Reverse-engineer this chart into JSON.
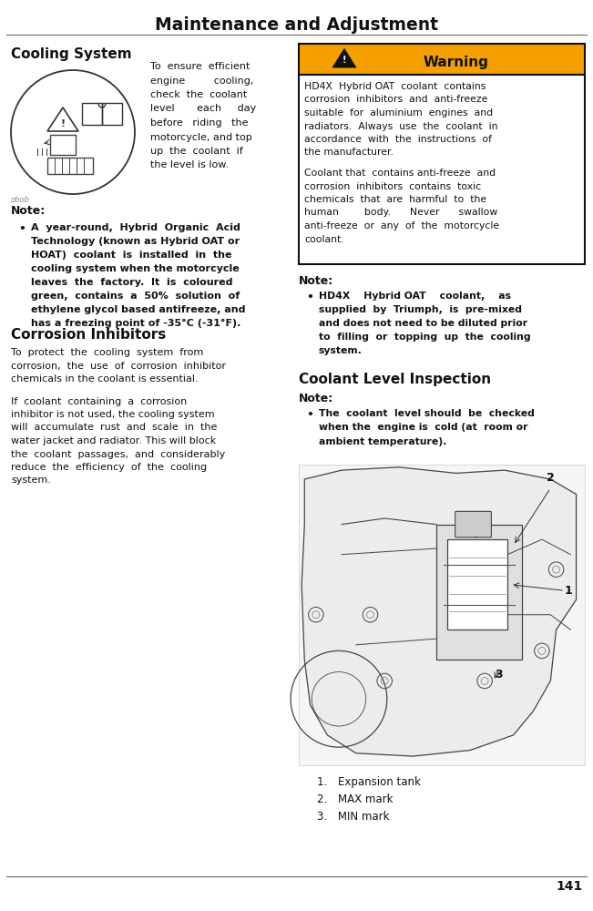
{
  "page_title": "Maintenance and Adjustment",
  "page_number": "141",
  "bg_color": "#ffffff",
  "title_color": "#000000",
  "warning_bg": "#f5a000",
  "warning_border": "#111111",
  "text_color": "#111111",
  "header_title": "Maintenance and Adjustment",
  "section1_title": "Cooling System",
  "obob_label": "obob",
  "intro_text_lines": [
    "To  ensure  efficient",
    "engine         cooling,",
    "check  the  coolant",
    "level       each     day",
    "before   riding   the",
    "motorcycle, and top",
    "up  the  coolant  if",
    "the level is low."
  ],
  "note1_label": "Note:",
  "note1_bullet_lines": [
    "A  year-round,  Hybrid  Organic  Acid",
    "Technology (known as Hybrid OAT or",
    "HOAT)  coolant  is  installed  in  the",
    "cooling system when the motorcycle",
    "leaves  the  factory.  It  is  coloured",
    "green,  contains  a  50%  solution  of",
    "ethylene glycol based antifreeze, and",
    "has a freezing point of -35°C (-31°F)."
  ],
  "section2_title": "Corrosion Inhibitors",
  "corrosion_para1_lines": [
    "To  protect  the  cooling  system  from",
    "corrosion,  the  use  of  corrosion  inhibitor",
    "chemicals in the coolant is essential."
  ],
  "corrosion_para2_lines": [
    "If  coolant  containing  a  corrosion",
    "inhibitor is not used, the cooling system",
    "will  accumulate  rust  and  scale  in  the",
    "water jacket and radiator. This will block",
    "the  coolant  passages,  and  considerably",
    "reduce  the  efficiency  of  the  cooling",
    "system."
  ],
  "warning_title": "Warning",
  "warning_text1_lines": [
    "HD4X  Hybrid OAT  coolant  contains",
    "corrosion  inhibitors  and  anti-freeze",
    "suitable  for  aluminium  engines  and",
    "radiators.  Always  use  the  coolant  in",
    "accordance  with  the  instructions  of",
    "the manufacturer."
  ],
  "warning_text2_lines": [
    "Coolant that  contains anti-freeze  and",
    "corrosion  inhibitors  contains  toxic",
    "chemicals  that  are  harmful  to  the",
    "human        body.      Never      swallow",
    "anti-freeze  or  any  of  the  motorcycle",
    "coolant."
  ],
  "note2_label": "Note:",
  "note2_bullet_lines": [
    "HD4X    Hybrid OAT    coolant,    as",
    "supplied  by  Triumph,  is  pre-mixed",
    "and does not need to be diluted prior",
    "to  filling  or  topping  up  the  cooling",
    "system."
  ],
  "section3_title": "Coolant Level Inspection",
  "note3_label": "Note:",
  "note3_bullet_lines": [
    "The  coolant  level should  be  checked",
    "when the  engine is  cold (at  room or",
    "ambient temperature)."
  ],
  "legend1": "1. Expansion tank",
  "legend2": "2. MAX mark",
  "legend3": "3. MIN mark"
}
